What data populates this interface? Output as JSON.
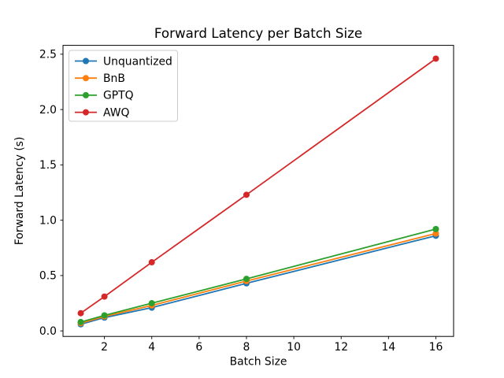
{
  "chart_data": {
    "type": "line",
    "title": "Forward Latency per Batch Size",
    "xlabel": "Batch Size",
    "ylabel": "Forward Latency (s)",
    "x": [
      1,
      2,
      4,
      8,
      16
    ],
    "series": [
      {
        "name": "Unquantized",
        "color": "#1f77b4",
        "values": [
          0.06,
          0.12,
          0.21,
          0.43,
          0.86
        ]
      },
      {
        "name": "BnB",
        "color": "#ff7f0e",
        "values": [
          0.07,
          0.13,
          0.23,
          0.45,
          0.88
        ]
      },
      {
        "name": "GPTQ",
        "color": "#2ca02c",
        "values": [
          0.08,
          0.14,
          0.25,
          0.47,
          0.92
        ]
      },
      {
        "name": "AWQ",
        "color": "#d62728",
        "values": [
          0.16,
          0.31,
          0.62,
          1.23,
          2.46
        ]
      }
    ],
    "xticks": [
      2,
      4,
      6,
      8,
      10,
      12,
      14,
      16
    ],
    "yticks": [
      0.0,
      0.5,
      1.0,
      1.5,
      2.0,
      2.5
    ],
    "xlim": [
      0.25,
      16.75
    ],
    "ylim": [
      -0.05,
      2.58
    ],
    "grid": false,
    "marker": "circle",
    "legend_position": "upper-left",
    "axis_color": "#000000",
    "legend_border_color": "#cccccc",
    "background_color": "#ffffff"
  }
}
